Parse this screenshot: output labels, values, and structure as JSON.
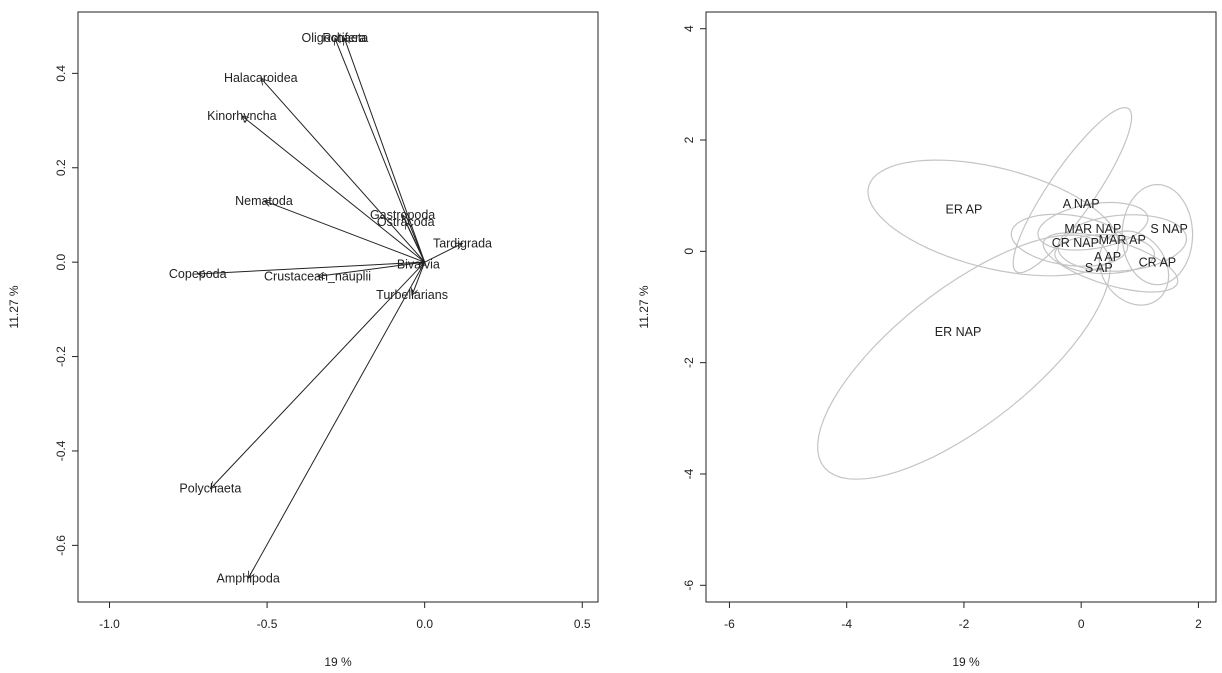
{
  "chart_data": [
    {
      "type": "biplot-arrows",
      "xlabel": "19 %",
      "ylabel": "11.27 %",
      "xlim": [
        -1.1,
        0.55
      ],
      "ylim": [
        -0.72,
        0.53
      ],
      "xticks": [
        -1.0,
        -0.5,
        0.0,
        0.5
      ],
      "xtick_labels": [
        "-1.0",
        "-0.5",
        "0.0",
        "0.5"
      ],
      "yticks": [
        -0.6,
        -0.4,
        -0.2,
        0.0,
        0.2,
        0.4
      ],
      "ytick_labels": [
        "-0.6",
        "-0.4",
        "-0.2",
        "0.0",
        "0.2",
        "0.4"
      ],
      "arrow_color": "#222222",
      "vectors": [
        {
          "name": "Oligochaeta",
          "x": -0.285,
          "y": 0.475
        },
        {
          "name": "Rotifera",
          "x": -0.255,
          "y": 0.475
        },
        {
          "name": "Halacaroidea",
          "x": -0.52,
          "y": 0.39
        },
        {
          "name": "Kinorhyncha",
          "x": -0.58,
          "y": 0.31
        },
        {
          "name": "Nematoda",
          "x": -0.51,
          "y": 0.13
        },
        {
          "name": "Gastropoda",
          "x": -0.07,
          "y": 0.1
        },
        {
          "name": "Ostracoda",
          "x": -0.06,
          "y": 0.085
        },
        {
          "name": "Tardigrada",
          "x": 0.12,
          "y": 0.04
        },
        {
          "name": "Bivalvia",
          "x": -0.02,
          "y": -0.005
        },
        {
          "name": "Copepoda",
          "x": -0.72,
          "y": -0.025
        },
        {
          "name": "Crustacean_nauplii",
          "x": -0.34,
          "y": -0.03
        },
        {
          "name": "Turbellarians",
          "x": -0.04,
          "y": -0.07
        },
        {
          "name": "Polychaeta",
          "x": -0.68,
          "y": -0.48
        },
        {
          "name": "Amphipoda",
          "x": -0.56,
          "y": -0.67
        }
      ]
    },
    {
      "type": "ellipse-ordination",
      "xlabel": "19 %",
      "ylabel": "11.27 %",
      "xlim": [
        -6.4,
        2.3
      ],
      "ylim": [
        -6.3,
        4.3
      ],
      "xticks": [
        -6,
        -4,
        -2,
        0,
        2
      ],
      "xtick_labels": [
        "-6",
        "-4",
        "-2",
        "0",
        "2"
      ],
      "yticks": [
        -6,
        -4,
        -2,
        0,
        2,
        4
      ],
      "ytick_labels": [
        "-6",
        "-4",
        "-2",
        "0",
        "2",
        "4"
      ],
      "ellipse_color": "#c4c4c4",
      "groups": [
        {
          "name": "ER AP",
          "x": -2.0,
          "y": 0.75,
          "ellipse": {
            "cx": -1.5,
            "cy": 0.6,
            "rx": 2.2,
            "ry": 0.9,
            "angle": -15
          }
        },
        {
          "name": "ER NAP",
          "x": -2.1,
          "y": -1.45,
          "ellipse": {
            "cx": -2.0,
            "cy": -1.9,
            "rx": 3.1,
            "ry": 1.2,
            "angle": 40
          }
        },
        {
          "name": "A NAP",
          "x": 0.0,
          "y": 0.85,
          "ellipse": {
            "cx": -0.15,
            "cy": 1.1,
            "rx": 1.75,
            "ry": 0.4,
            "angle": 57
          }
        },
        {
          "name": "MAR NAP",
          "x": 0.2,
          "y": 0.4,
          "ellipse": {
            "cx": 0.2,
            "cy": 0.45,
            "rx": 0.95,
            "ry": 0.4,
            "angle": 10
          }
        },
        {
          "name": "S NAP",
          "x": 1.5,
          "y": 0.4,
          "ellipse": {
            "cx": 1.3,
            "cy": 0.3,
            "rx": 0.6,
            "ry": 0.9,
            "angle": 0
          }
        },
        {
          "name": "CR NAP",
          "x": -0.1,
          "y": 0.15,
          "ellipse": {
            "cx": -0.2,
            "cy": 0.2,
            "rx": 1.0,
            "ry": 0.45,
            "angle": -8
          }
        },
        {
          "name": "MAR AP",
          "x": 0.7,
          "y": 0.2,
          "ellipse": {
            "cx": 0.7,
            "cy": 0.15,
            "rx": 1.1,
            "ry": 0.5,
            "angle": 5
          }
        },
        {
          "name": "A AP",
          "x": 0.45,
          "y": -0.1,
          "ellipse": {
            "cx": 0.4,
            "cy": -0.05,
            "rx": 0.85,
            "ry": 0.35,
            "angle": 0
          }
        },
        {
          "name": "CR AP",
          "x": 1.3,
          "y": -0.2,
          "ellipse": {
            "cx": 0.9,
            "cy": -0.3,
            "rx": 0.55,
            "ry": 0.7,
            "angle": 30
          }
        },
        {
          "name": "S AP",
          "x": 0.3,
          "y": -0.3,
          "ellipse": {
            "cx": 0.5,
            "cy": -0.2,
            "rx": 1.2,
            "ry": 0.4,
            "angle": -18
          }
        }
      ]
    }
  ]
}
